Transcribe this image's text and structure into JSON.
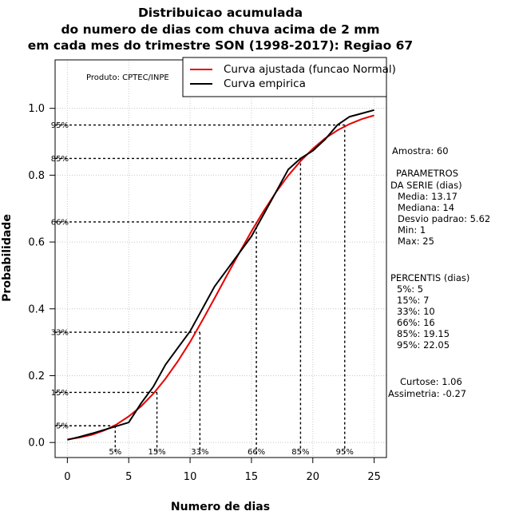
{
  "chart_data": {
    "type": "line",
    "title_lines": [
      "Distribuicao acumulada",
      "do numero de dias com chuva acima de 2 mm",
      "em cada mes do trimestre SON (1998-2017): Regiao 67"
    ],
    "xlabel": "Numero de dias",
    "ylabel": "Probabilidade",
    "xlim": [
      -1,
      26
    ],
    "ylim": [
      -0.045,
      1.145
    ],
    "xticks": [
      0,
      5,
      10,
      15,
      20,
      25
    ],
    "yticks": [
      0.0,
      0.2,
      0.4,
      0.6,
      0.8,
      1.0
    ],
    "xtick_labels": [
      "0",
      "5",
      "10",
      "15",
      "20",
      "25"
    ],
    "ytick_labels": [
      "0.0",
      "0.2",
      "0.4",
      "0.6",
      "0.8",
      "1.0"
    ],
    "grid": true,
    "credit": "Produto: CPTEC/INPE",
    "legend": {
      "position": "top-right",
      "entries": [
        {
          "label": "Curva ajustada (funcao Normal)",
          "color": "#e60000"
        },
        {
          "label": "Curva empirica",
          "color": "#000000"
        }
      ]
    },
    "series": [
      {
        "name": "Curva ajustada (funcao Normal)",
        "color": "#e60000",
        "x": [
          0,
          1,
          2,
          3,
          4,
          5,
          6,
          7,
          8,
          9,
          10,
          11,
          12,
          13,
          14,
          15,
          16,
          17,
          18,
          19,
          20,
          21,
          22,
          23,
          24,
          25
        ],
        "y": [
          0.009,
          0.015,
          0.023,
          0.036,
          0.054,
          0.078,
          0.108,
          0.146,
          0.191,
          0.243,
          0.301,
          0.365,
          0.432,
          0.5,
          0.567,
          0.632,
          0.693,
          0.749,
          0.799,
          0.842,
          0.879,
          0.91,
          0.934,
          0.953,
          0.968,
          0.979
        ]
      },
      {
        "name": "Curva empirica",
        "color": "#000000",
        "x": [
          0,
          1,
          2,
          3,
          4,
          5,
          6,
          7,
          8,
          9,
          10,
          11,
          12,
          13,
          14,
          15,
          16,
          17,
          18,
          19,
          20,
          21,
          22,
          23,
          24,
          25
        ],
        "y": [
          0.008,
          0.017,
          0.027,
          0.038,
          0.049,
          0.06,
          0.117,
          0.167,
          0.233,
          0.283,
          0.333,
          0.4,
          0.467,
          0.517,
          0.567,
          0.617,
          0.683,
          0.75,
          0.817,
          0.85,
          0.873,
          0.907,
          0.95,
          0.975,
          0.985,
          0.995
        ]
      }
    ],
    "percentile_lines": [
      {
        "label": "5%",
        "x": 3.9,
        "y": 0.05
      },
      {
        "label": "15%",
        "x": 7.3,
        "y": 0.15
      },
      {
        "label": "33%",
        "x": 10.8,
        "y": 0.33
      },
      {
        "label": "66%",
        "x": 15.4,
        "y": 0.66
      },
      {
        "label": "85%",
        "x": 19.0,
        "y": 0.85
      },
      {
        "label": "95%",
        "x": 22.6,
        "y": 0.95
      }
    ],
    "side_stats": {
      "sample": "Amostra: 60",
      "params_header_1": "PARAMETROS",
      "params_header_2": "DA SERIE (dias)",
      "params": [
        "Media: 13.17",
        "Mediana: 14",
        "Desvio padrao: 5.62",
        "Min: 1",
        "Max: 25"
      ],
      "percentis_header": "PERCENTIS (dias)",
      "percentis": [
        "5%: 5",
        "15%: 7",
        "33%: 10",
        "66%: 16",
        "85%: 19.15",
        "95%: 22.05"
      ],
      "curtose": "Curtose: 1.06",
      "assimetria": "Assimetria: -0.27"
    }
  }
}
